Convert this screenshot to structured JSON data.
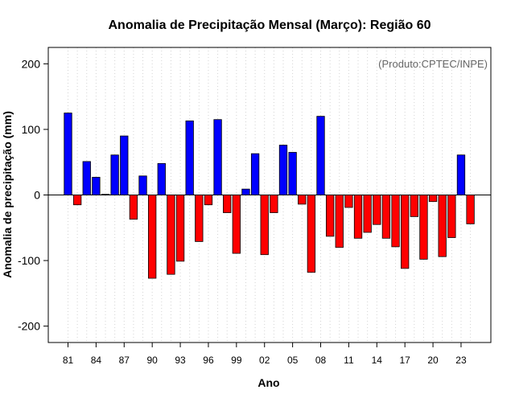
{
  "chart_data": {
    "type": "bar",
    "title": "Anomalia de Precipitação Mensal (Março): Região 60",
    "xlabel": "Ano",
    "ylabel": "Anomalia de precipitação (mm)",
    "credit": "(Produto:CPTEC/INPE)",
    "ylim": [
      -225,
      225
    ],
    "yticks": [
      -200,
      -100,
      0,
      100,
      200
    ],
    "ytick_labels": [
      "-200",
      "-100",
      "0",
      "100",
      "200"
    ],
    "x": [
      1981,
      1982,
      1983,
      1984,
      1985,
      1986,
      1987,
      1988,
      1989,
      1990,
      1991,
      1992,
      1993,
      1994,
      1995,
      1996,
      1997,
      1998,
      1999,
      2000,
      2001,
      2002,
      2003,
      2004,
      2005,
      2006,
      2007,
      2008,
      2009,
      2010,
      2011,
      2012,
      2013,
      2014,
      2015,
      2016,
      2017,
      2018,
      2019,
      2020,
      2021,
      2022,
      2023,
      2024
    ],
    "values": [
      125,
      -15,
      51,
      27,
      1,
      61,
      90,
      -37,
      29,
      -127,
      48,
      -121,
      -101,
      113,
      -71,
      -15,
      115,
      -27,
      -89,
      9,
      63,
      -91,
      -27,
      76,
      65,
      -14,
      -118,
      120,
      -63,
      -80,
      -19,
      -66,
      -57,
      -45,
      -66,
      -79,
      -112,
      -33,
      -98,
      -10,
      -94,
      -65,
      61,
      -44
    ],
    "xtick_labels": [
      "81",
      "84",
      "87",
      "90",
      "93",
      "96",
      "99",
      "02",
      "05",
      "08",
      "11",
      "14",
      "17",
      "20",
      "23"
    ],
    "positive_color": "#0000ff",
    "negative_color": "#ff0000",
    "grid": true
  }
}
